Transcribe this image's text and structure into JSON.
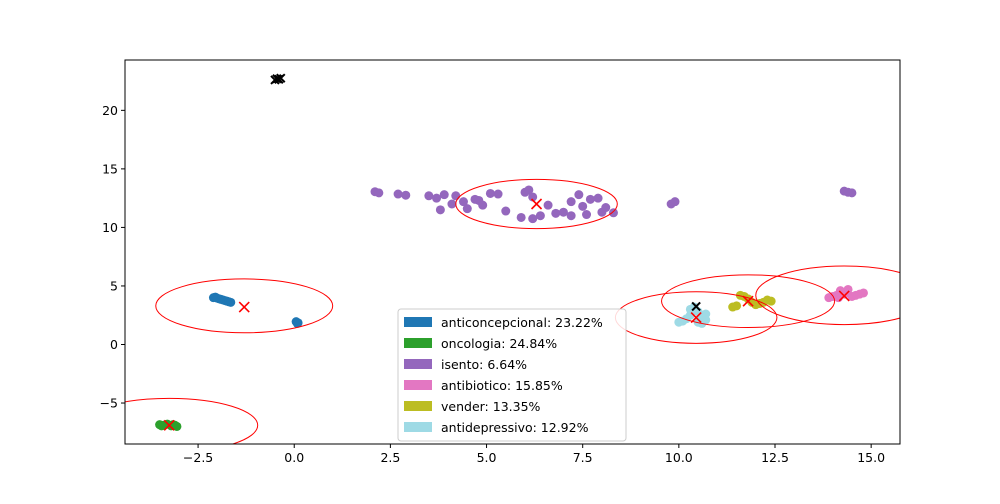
{
  "chart_data": {
    "type": "scatter",
    "title": "",
    "xlabel": "",
    "ylabel": "",
    "xlim": [
      -4.4,
      15.75
    ],
    "ylim": [
      -8.5,
      24.3
    ],
    "xticks": [
      -2.5,
      0.0,
      2.5,
      5.0,
      7.5,
      10.0,
      12.5,
      15.0
    ],
    "xtick_labels": [
      "−2.5",
      "0.0",
      "2.5",
      "5.0",
      "7.5",
      "10.0",
      "12.5",
      "15.0"
    ],
    "yticks": [
      -5,
      0,
      5,
      10,
      15,
      20
    ],
    "ytick_labels": [
      "−5",
      "0",
      "5",
      "10",
      "15",
      "20"
    ],
    "grid": false,
    "legend_position": "lower-center",
    "series": [
      {
        "name": "anticoncepcional: 23.22%",
        "color": "#1f77b4",
        "points": [
          [
            -2.05,
            4.05
          ],
          [
            -2.0,
            3.95
          ],
          [
            -1.95,
            3.9
          ],
          [
            -1.9,
            3.85
          ],
          [
            -1.85,
            3.8
          ],
          [
            -1.8,
            3.75
          ],
          [
            -1.75,
            3.7
          ],
          [
            -1.7,
            3.65
          ],
          [
            -1.65,
            3.6
          ],
          [
            -2.1,
            4.0
          ],
          [
            0.05,
            1.95
          ],
          [
            0.1,
            1.85
          ],
          [
            0.08,
            1.8
          ]
        ]
      },
      {
        "name": "oncologia: 24.84%",
        "color": "#2ca02c",
        "points": [
          [
            -3.5,
            -6.85
          ],
          [
            -3.4,
            -6.9
          ],
          [
            -3.3,
            -6.8
          ],
          [
            -3.2,
            -6.95
          ],
          [
            -3.1,
            -6.9
          ],
          [
            -3.05,
            -7.0
          ],
          [
            -3.45,
            -6.95
          ],
          [
            -3.15,
            -6.85
          ]
        ]
      },
      {
        "name": "isento: 6.64%",
        "color": "#9467bd",
        "points": [
          [
            2.1,
            13.05
          ],
          [
            2.2,
            12.95
          ],
          [
            2.7,
            12.85
          ],
          [
            2.9,
            12.75
          ],
          [
            3.5,
            12.7
          ],
          [
            3.7,
            12.5
          ],
          [
            3.9,
            12.8
          ],
          [
            3.8,
            11.5
          ],
          [
            4.1,
            12.0
          ],
          [
            4.2,
            12.7
          ],
          [
            4.4,
            12.2
          ],
          [
            4.5,
            11.6
          ],
          [
            4.8,
            12.3
          ],
          [
            4.9,
            11.9
          ],
          [
            5.1,
            12.9
          ],
          [
            5.3,
            12.85
          ],
          [
            5.5,
            11.4
          ],
          [
            6.0,
            13.0
          ],
          [
            6.1,
            13.2
          ],
          [
            6.2,
            12.6
          ],
          [
            5.9,
            10.85
          ],
          [
            6.2,
            10.75
          ],
          [
            6.4,
            11.0
          ],
          [
            6.6,
            11.9
          ],
          [
            6.8,
            11.2
          ],
          [
            7.0,
            11.3
          ],
          [
            7.2,
            11.0
          ],
          [
            7.5,
            11.8
          ],
          [
            7.7,
            12.4
          ],
          [
            7.9,
            12.5
          ],
          [
            7.6,
            11.1
          ],
          [
            8.0,
            11.3
          ],
          [
            8.1,
            11.7
          ],
          [
            8.3,
            11.25
          ],
          [
            7.4,
            12.8
          ],
          [
            7.2,
            12.2
          ],
          [
            4.7,
            12.4
          ],
          [
            9.8,
            12.0
          ],
          [
            9.9,
            12.2
          ],
          [
            14.3,
            13.1
          ],
          [
            14.4,
            13.0
          ],
          [
            14.5,
            12.95
          ]
        ]
      },
      {
        "name": "antibiotico: 15.85%",
        "color": "#e377c2",
        "points": [
          [
            13.9,
            4.0
          ],
          [
            14.0,
            4.1
          ],
          [
            14.1,
            4.2
          ],
          [
            14.2,
            4.6
          ],
          [
            14.3,
            4.3
          ],
          [
            14.4,
            4.7
          ],
          [
            14.5,
            4.1
          ],
          [
            14.6,
            4.2
          ],
          [
            14.7,
            4.3
          ],
          [
            14.8,
            4.4
          ],
          [
            14.15,
            4.0
          ]
        ]
      },
      {
        "name": "vender: 13.35%",
        "color": "#bcbd22",
        "points": [
          [
            11.4,
            3.2
          ],
          [
            11.5,
            3.3
          ],
          [
            11.6,
            4.2
          ],
          [
            11.7,
            4.1
          ],
          [
            11.8,
            3.9
          ],
          [
            11.9,
            3.6
          ],
          [
            12.0,
            3.4
          ],
          [
            12.1,
            3.5
          ],
          [
            12.2,
            3.6
          ],
          [
            12.3,
            3.8
          ],
          [
            12.4,
            3.7
          ]
        ]
      },
      {
        "name": "antidepressivo: 12.92%",
        "color": "#9edae5",
        "points": [
          [
            10.0,
            1.9
          ],
          [
            10.1,
            2.0
          ],
          [
            10.2,
            2.2
          ],
          [
            10.3,
            2.5
          ],
          [
            10.4,
            3.2
          ],
          [
            10.5,
            2.8
          ],
          [
            10.6,
            2.3
          ],
          [
            10.7,
            2.6
          ],
          [
            10.5,
            1.9
          ],
          [
            10.6,
            1.8
          ],
          [
            10.7,
            2.1
          ],
          [
            10.3,
            3.0
          ]
        ]
      }
    ],
    "outlier_points": {
      "color": "#000000",
      "points": [
        [
          -0.45,
          22.7
        ],
        [
          -0.4,
          22.65
        ],
        [
          -0.35,
          22.75
        ],
        [
          -0.5,
          22.6
        ],
        [
          10.45,
          3.25
        ]
      ]
    },
    "centroids": {
      "color": "#ff0000",
      "marker": "x",
      "points": [
        [
          -1.3,
          3.2
        ],
        [
          -3.25,
          -6.9
        ],
        [
          6.3,
          12.0
        ],
        [
          14.3,
          4.15
        ],
        [
          11.8,
          3.7
        ],
        [
          10.45,
          2.3
        ]
      ]
    },
    "circles": {
      "color": "#ff0000",
      "items": [
        {
          "cx": -1.3,
          "cy": 3.3,
          "rx": 2.3,
          "ry": 2.3
        },
        {
          "cx": -3.25,
          "cy": -6.9,
          "rx": 2.3,
          "ry": 2.3
        },
        {
          "cx": 6.3,
          "cy": 12.0,
          "rx": 2.1,
          "ry": 2.1
        },
        {
          "cx": 14.3,
          "cy": 4.2,
          "rx": 2.3,
          "ry": 2.5
        },
        {
          "cx": 11.8,
          "cy": 3.7,
          "rx": 2.25,
          "ry": 2.25
        },
        {
          "cx": 10.45,
          "cy": 2.3,
          "rx": 2.1,
          "ry": 2.2
        }
      ]
    }
  }
}
